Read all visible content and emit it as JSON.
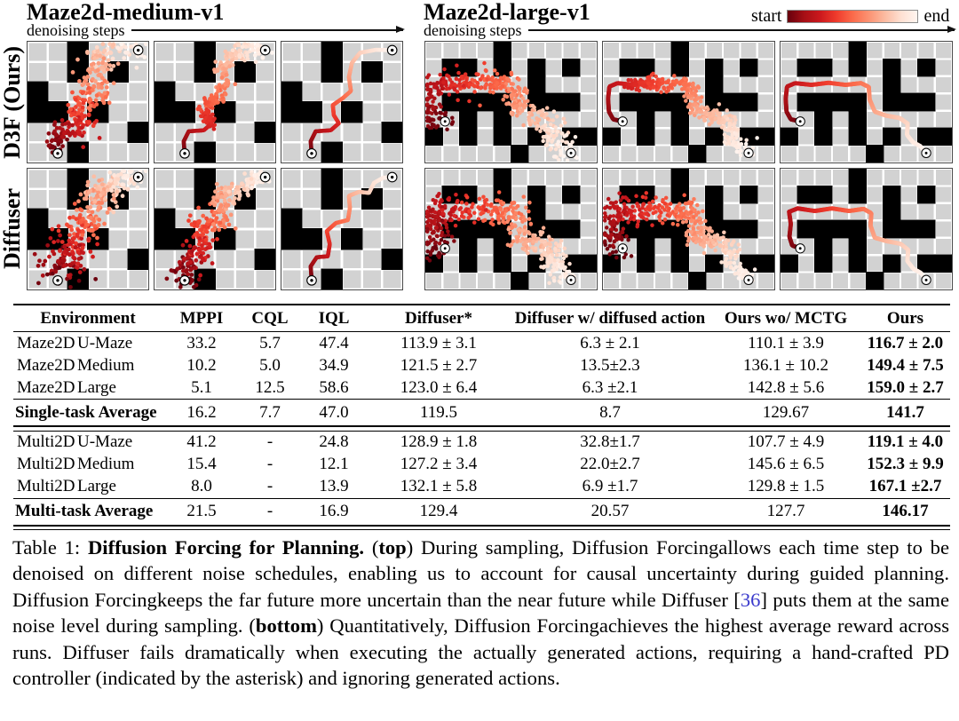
{
  "figure": {
    "medium": {
      "title": "Maze2d-medium-v1",
      "axis_label": "denoising steps"
    },
    "large": {
      "title": "Maze2d-large-v1",
      "axis_label": "denoising steps"
    },
    "colorbar": {
      "start_label": "start",
      "end_label": "end"
    },
    "row_labels": [
      "D3F (Ours)",
      "Diffuser"
    ],
    "colors": {
      "ramp": [
        "#67000d",
        "#a50f15",
        "#cb181d",
        "#ef3b2c",
        "#fb6a4a",
        "#fc9272",
        "#fcbba1",
        "#fee0d2",
        "#fff5f0"
      ],
      "wall": "#000000",
      "floor": "#d2d2d2",
      "grid": "#ffffff"
    },
    "mazes": {
      "medium": {
        "cols": 6,
        "rows": 6,
        "walls": [
          "..#...",
          "..#.#.",
          "#.....",
          "##.#..",
          ".....#",
          "..#..."
        ],
        "trajs": {
          "d3f": [
            [
              1.5,
              5.55
            ],
            [
              1.45,
              4.95
            ],
            [
              1.7,
              4.45
            ],
            [
              2.45,
              4.4
            ],
            [
              2.85,
              4.05
            ],
            [
              2.6,
              3.65
            ],
            [
              2.55,
              3.15
            ],
            [
              3.05,
              2.8
            ],
            [
              3.45,
              2.45
            ],
            [
              3.35,
              1.75
            ],
            [
              3.5,
              1.05
            ],
            [
              3.9,
              0.55
            ],
            [
              4.7,
              0.4
            ],
            [
              5.5,
              0.42
            ]
          ],
          "dif": [
            [
              1.5,
              5.55
            ],
            [
              1.45,
              4.85
            ],
            [
              1.75,
              4.4
            ],
            [
              2.3,
              4.35
            ],
            [
              2.4,
              3.75
            ],
            [
              2.25,
              3.1
            ],
            [
              2.7,
              2.7
            ],
            [
              3.3,
              2.55
            ],
            [
              3.4,
              1.95
            ],
            [
              3.35,
              1.35
            ],
            [
              3.85,
              1.15
            ],
            [
              4.35,
              1.2
            ],
            [
              4.6,
              0.7
            ],
            [
              5.05,
              0.45
            ],
            [
              5.5,
              0.42
            ]
          ]
        },
        "dot_r": 6.3,
        "path_w": 12,
        "marker_r": 14
      },
      "large": {
        "cols": 10,
        "rows": 7,
        "walls": [
          "....#.....",
          ".##.#.#.#.",
          "......#...",
          ".####.###.",
          "..#.#.....",
          "#.#.#.#.##",
          ".....#...."
        ],
        "trajs": {
          "d3f": [
            [
              1.15,
              4.62
            ],
            [
              0.6,
              4.5
            ],
            [
              0.35,
              4.05
            ],
            [
              0.3,
              3.3
            ],
            [
              0.38,
              2.6
            ],
            [
              0.85,
              2.4
            ],
            [
              1.8,
              2.5
            ],
            [
              2.8,
              2.38
            ],
            [
              3.8,
              2.5
            ],
            [
              4.7,
              2.4
            ],
            [
              5.15,
              2.62
            ],
            [
              5.2,
              3.35
            ],
            [
              5.5,
              4.05
            ],
            [
              6.15,
              4.28
            ],
            [
              6.95,
              4.42
            ],
            [
              7.42,
              4.75
            ],
            [
              7.38,
              5.4
            ],
            [
              7.72,
              5.82
            ],
            [
              8.15,
              6.05
            ],
            [
              8.5,
              6.45
            ]
          ],
          "dif": [
            [
              1.15,
              4.62
            ],
            [
              0.68,
              4.45
            ],
            [
              0.52,
              3.95
            ],
            [
              0.6,
              3.2
            ],
            [
              0.5,
              2.5
            ],
            [
              1.0,
              2.3
            ],
            [
              2.0,
              2.45
            ],
            [
              3.0,
              2.3
            ],
            [
              4.0,
              2.45
            ],
            [
              4.85,
              2.33
            ],
            [
              5.3,
              2.58
            ],
            [
              5.25,
              3.3
            ],
            [
              5.5,
              4.0
            ],
            [
              6.2,
              4.2
            ],
            [
              7.0,
              4.35
            ],
            [
              7.45,
              4.7
            ],
            [
              7.4,
              5.35
            ],
            [
              7.75,
              5.8
            ],
            [
              8.2,
              6.05
            ],
            [
              8.5,
              6.45
            ]
          ]
        },
        "dot_r": 7,
        "path_w": 15,
        "marker_r": 16
      }
    },
    "panels": [
      {
        "id": "m-d3f-1",
        "maze": "medium",
        "traj": "d3f",
        "seed": 101,
        "solid": 0,
        "count": 290,
        "j0": 0.5,
        "j1": 0.8
      },
      {
        "id": "m-d3f-2",
        "maze": "medium",
        "traj": "d3f",
        "seed": 102,
        "solid": 0.33,
        "count": 210,
        "j0": 0.18,
        "j1": 0.5
      },
      {
        "id": "m-d3f-3",
        "maze": "medium",
        "traj": "d3f",
        "seed": 103,
        "solid": 1,
        "count": 0,
        "j0": 0,
        "j1": 0
      },
      {
        "id": "m-dif-1",
        "maze": "medium",
        "traj": "dif",
        "seed": 201,
        "solid": 0,
        "count": 330,
        "j0": 0.95,
        "j1": 0.55
      },
      {
        "id": "m-dif-2",
        "maze": "medium",
        "traj": "dif",
        "seed": 202,
        "solid": 0,
        "count": 310,
        "j0": 0.8,
        "j1": 0.38
      },
      {
        "id": "m-dif-3",
        "maze": "medium",
        "traj": "dif",
        "seed": 203,
        "solid": 1,
        "count": 0,
        "j0": 0,
        "j1": 0
      },
      {
        "id": "l-d3f-1",
        "maze": "large",
        "traj": "d3f",
        "seed": 301,
        "solid": 0,
        "count": 400,
        "j0": 0.55,
        "j1": 0.85
      },
      {
        "id": "l-d3f-2",
        "maze": "large",
        "traj": "d3f",
        "seed": 302,
        "solid": 0.32,
        "count": 320,
        "j0": 0.2,
        "j1": 0.55
      },
      {
        "id": "l-d3f-3",
        "maze": "large",
        "traj": "d3f",
        "seed": 303,
        "solid": 1,
        "count": 0,
        "j0": 0,
        "j1": 0
      },
      {
        "id": "l-dif-1",
        "maze": "large",
        "traj": "dif",
        "seed": 401,
        "solid": 0,
        "count": 460,
        "j0": 1.0,
        "j1": 0.65
      },
      {
        "id": "l-dif-2",
        "maze": "large",
        "traj": "dif",
        "seed": 402,
        "solid": 0,
        "count": 420,
        "j0": 0.85,
        "j1": 0.4
      },
      {
        "id": "l-dif-3",
        "maze": "large",
        "traj": "dif",
        "seed": 403,
        "solid": 1,
        "count": 0,
        "j0": 0,
        "j1": 0
      }
    ]
  },
  "table": {
    "columns": [
      "Environment",
      "MPPI",
      "CQL",
      "IQL",
      "Diffuser*",
      "Diffuser w/ diffused action",
      "Ours wo/ MCTG",
      "Ours"
    ],
    "groups": [
      {
        "rows": [
          [
            "Maze2D",
            "U-Maze",
            "33.2",
            "5.7",
            "47.4",
            "113.9 ± 3.1",
            "6.3 ± 2.1",
            "110.1 ± 3.9",
            "116.7 ± 2.0"
          ],
          [
            "Maze2D",
            "Medium",
            "10.2",
            "5.0",
            "34.9",
            "121.5 ± 2.7",
            "13.5±2.3",
            "136.1 ± 10.2",
            "149.4 ± 7.5"
          ],
          [
            "Maze2D",
            "Large",
            "5.1",
            "12.5",
            "58.6",
            "123.0 ± 6.4",
            "6.3 ±2.1",
            "142.8 ± 5.6",
            "159.0 ± 2.7"
          ]
        ],
        "average": [
          "Single-task Average",
          "16.2",
          "7.7",
          "47.0",
          "119.5",
          "8.7",
          "129.67",
          "141.7"
        ]
      },
      {
        "rows": [
          [
            "Multi2D",
            "U-Maze",
            "41.2",
            "-",
            "24.8",
            "128.9 ± 1.8",
            "32.8±1.7",
            "107.7 ± 4.9",
            "119.1 ± 4.0"
          ],
          [
            "Multi2D",
            "Medium",
            "15.4",
            "-",
            "12.1",
            "127.2 ± 3.4",
            "22.0±2.7",
            "145.6 ± 6.5",
            "152.3 ± 9.9"
          ],
          [
            "Multi2D",
            "Large",
            "8.0",
            "-",
            "13.9",
            "132.1 ± 5.8",
            "6.9 ±1.7",
            "129.8 ± 1.5",
            "167.1 ±2.7"
          ]
        ],
        "average": [
          "Multi-task Average",
          "21.5",
          "-",
          "16.9",
          "129.4",
          "20.57",
          "127.7",
          "146.17"
        ]
      }
    ]
  },
  "caption": {
    "segments": [
      {
        "t": "Table 1: "
      },
      {
        "t": "Diffusion Forcing for Planning.",
        "b": 1
      },
      {
        "t": " ("
      },
      {
        "t": "top",
        "b": 1
      },
      {
        "t": ") During sampling, Diffusion Forcingallows each time step to be denoised on different noise schedules, enabling us to account for causal uncertainty during guided planning. Diffusion Forcingkeeps the far future more uncertain than the near future while Diffuser ["
      },
      {
        "t": "36",
        "c": "#3a3acc"
      },
      {
        "t": "] puts them at the same noise level during sampling. ("
      },
      {
        "t": "bottom",
        "b": 1
      },
      {
        "t": ") Quantitatively, Diffusion Forcingachieves the highest average reward across runs. Diffuser fails dramatically when executing the actually generated actions, requiring a hand-crafted PD controller (indicated by the asterisk) and ignoring generated actions."
      }
    ]
  }
}
